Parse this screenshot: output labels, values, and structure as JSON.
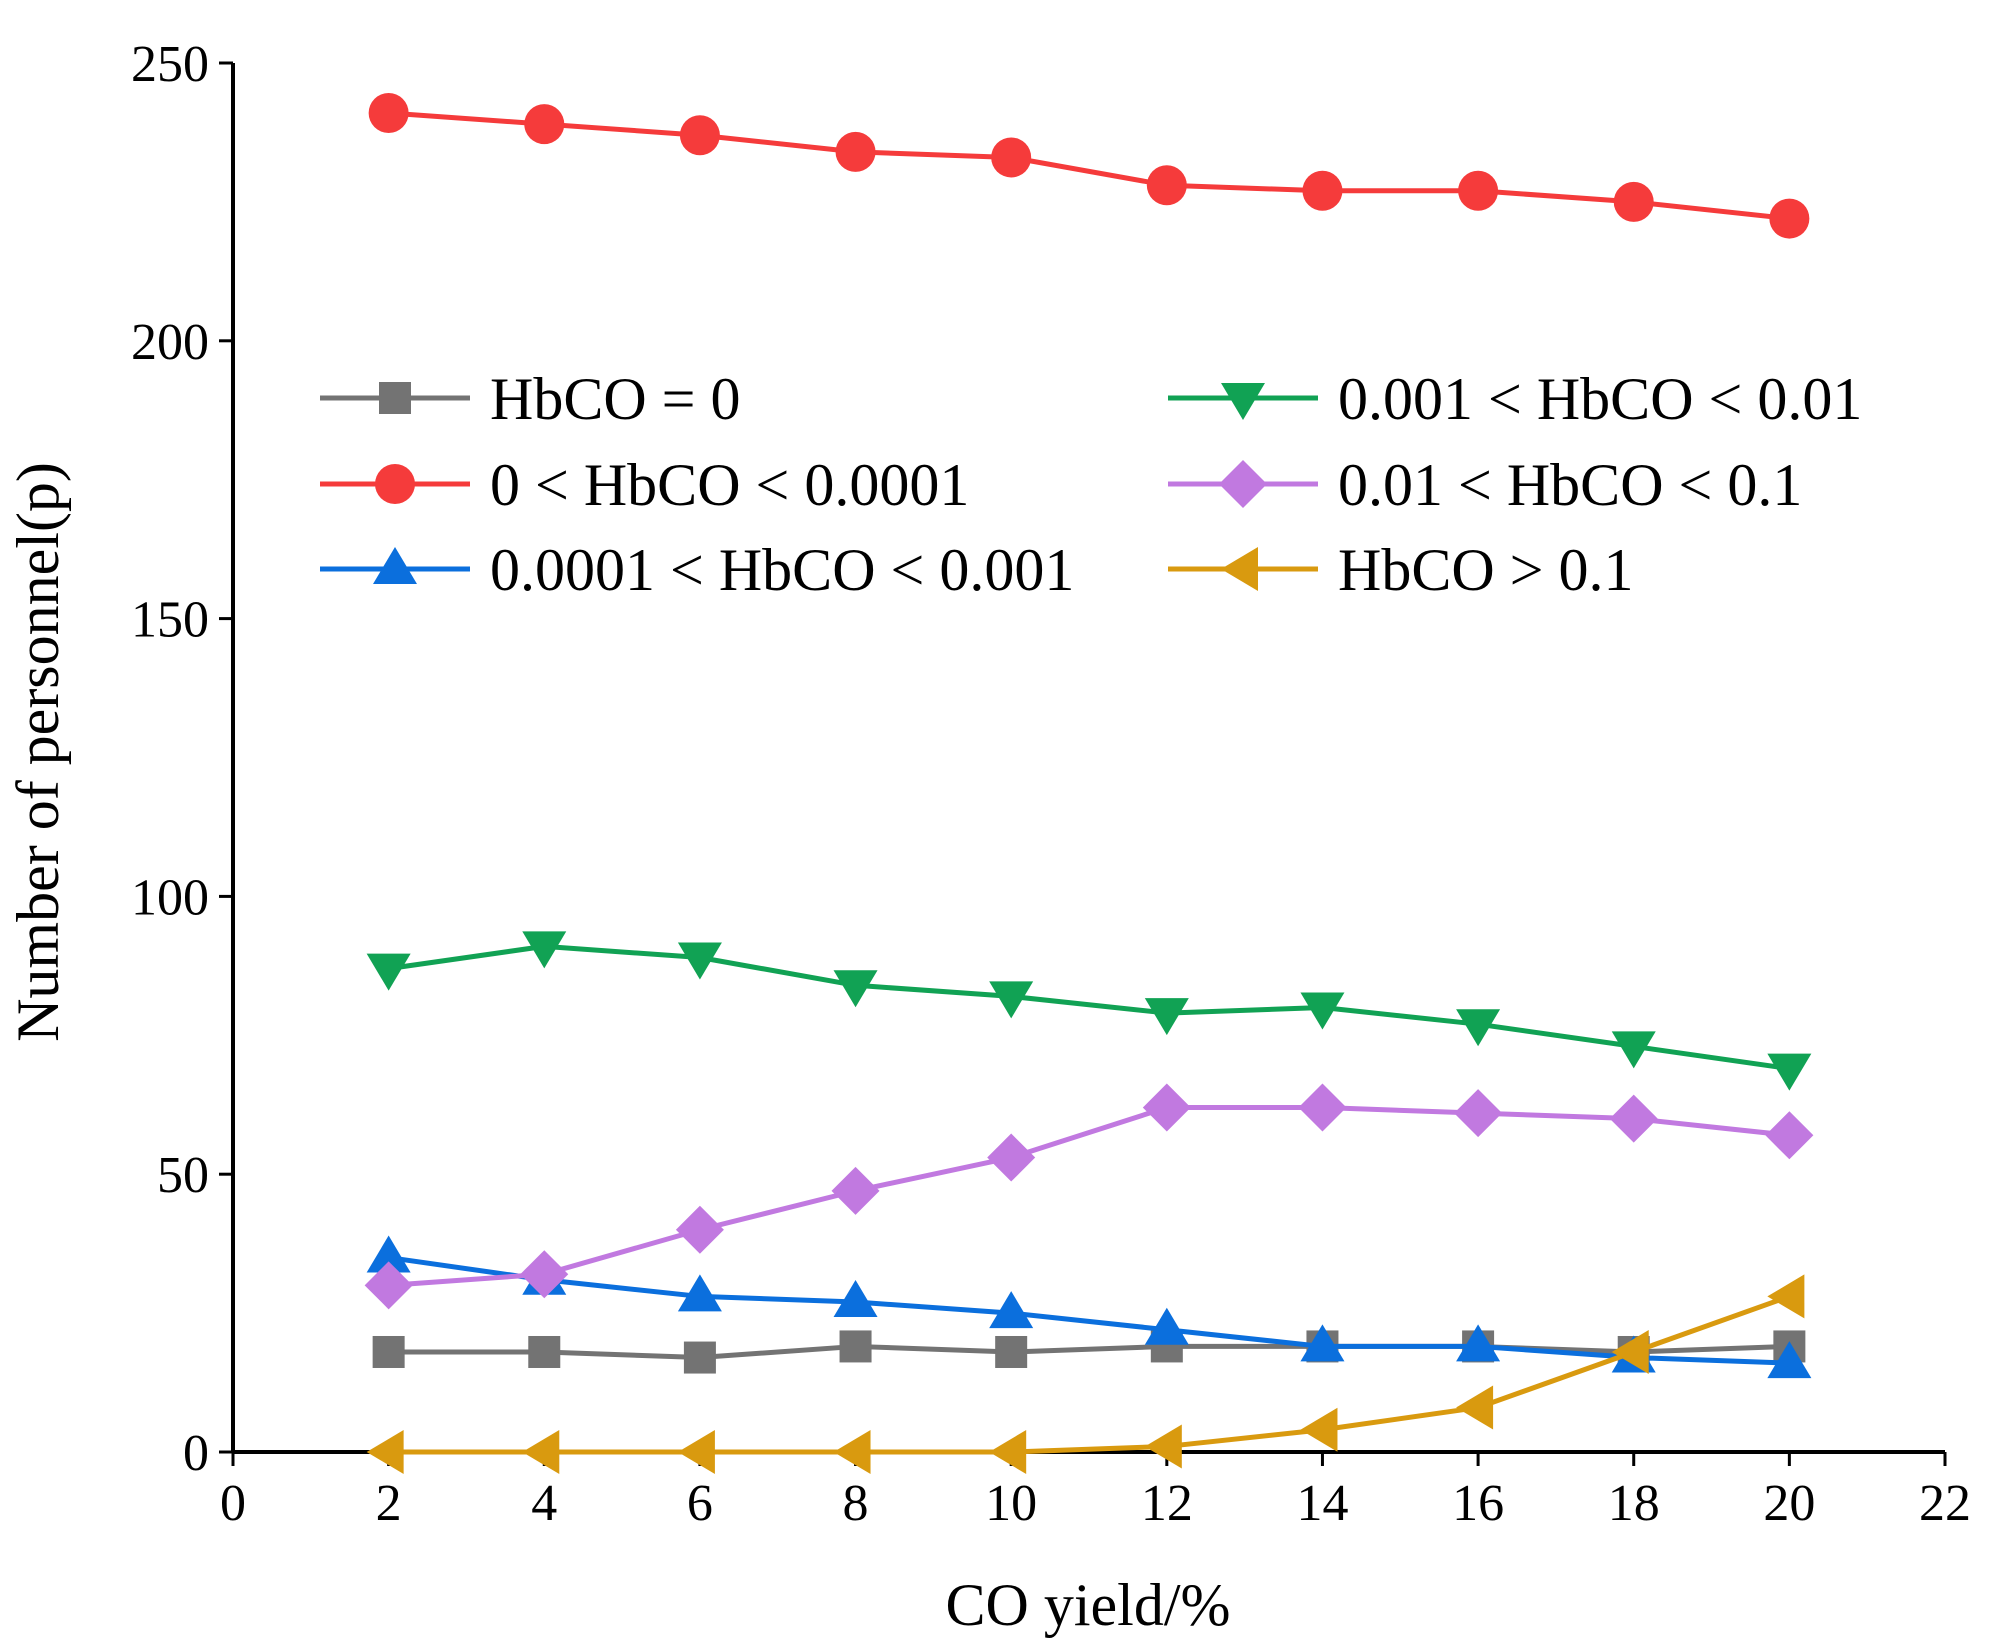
{
  "chart_data": {
    "type": "line",
    "title": "",
    "xlabel": "CO yield/%",
    "ylabel": "Number of personnel(p)",
    "xlim": [
      0,
      22
    ],
    "ylim": [
      0,
      250
    ],
    "xticks": [
      0,
      2,
      4,
      6,
      8,
      10,
      12,
      14,
      16,
      18,
      20,
      22
    ],
    "yticks": [
      0,
      50,
      100,
      150,
      200,
      250
    ],
    "grid": false,
    "legend_position": "center-top",
    "x": [
      2,
      4,
      6,
      8,
      10,
      12,
      14,
      16,
      18,
      20
    ],
    "series": [
      {
        "name": "HbCO = 0",
        "marker": "square",
        "color": "#737373",
        "values": [
          18,
          18,
          17,
          19,
          18,
          19,
          19,
          19,
          18,
          19
        ]
      },
      {
        "name": "0 < HbCO < 0.0001",
        "marker": "circle",
        "color": "#f53b3b",
        "values": [
          241,
          239,
          237,
          234,
          233,
          228,
          227,
          227,
          225,
          222
        ]
      },
      {
        "name": "0.0001 < HbCO < 0.001",
        "marker": "triangle-up",
        "color": "#0b6fdd",
        "values": [
          35,
          31,
          28,
          27,
          25,
          22,
          19,
          19,
          17,
          16
        ]
      },
      {
        "name": "0.001 < HbCO < 0.01",
        "marker": "triangle-down",
        "color": "#11a254",
        "values": [
          87,
          91,
          89,
          84,
          82,
          79,
          80,
          77,
          73,
          69
        ]
      },
      {
        "name": "0.01 < HbCO < 0.1",
        "marker": "diamond",
        "color": "#c179e0",
        "values": [
          30,
          32,
          40,
          47,
          53,
          62,
          62,
          61,
          60,
          57
        ]
      },
      {
        "name": "HbCO > 0.1",
        "marker": "triangle-left",
        "color": "#d99a0f",
        "values": [
          0,
          0,
          0,
          0,
          0,
          1,
          4,
          8,
          18,
          28
        ]
      }
    ]
  }
}
